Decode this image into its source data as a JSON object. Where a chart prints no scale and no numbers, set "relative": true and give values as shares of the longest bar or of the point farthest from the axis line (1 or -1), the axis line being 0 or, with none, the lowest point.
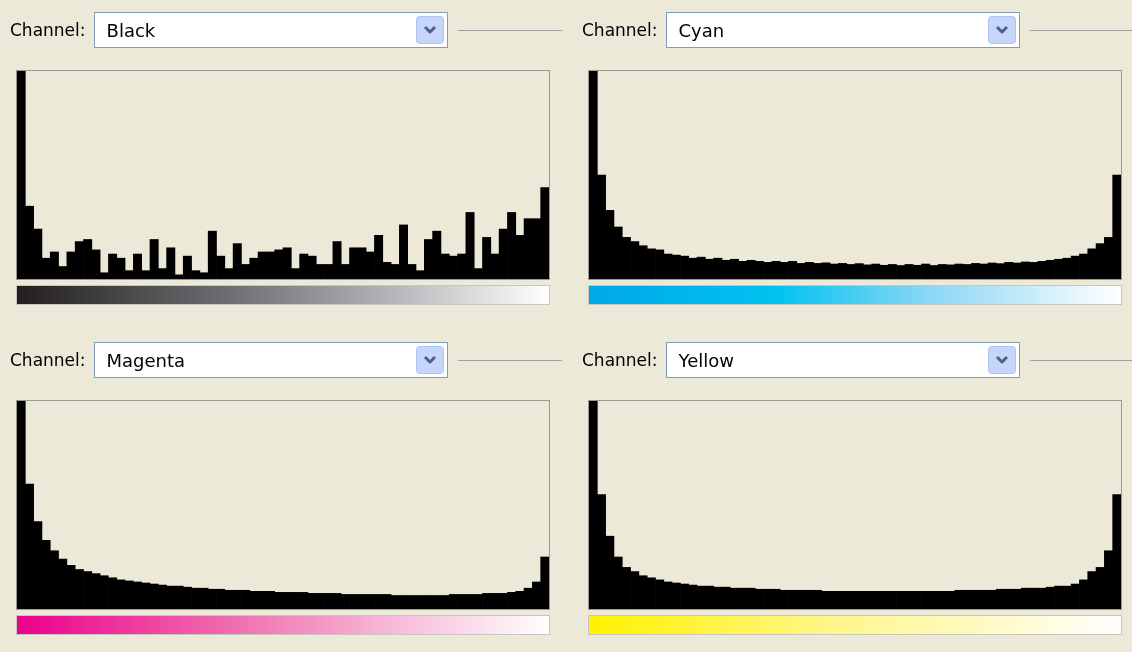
{
  "chart_data": [
    {
      "type": "bar",
      "title": "Channel:",
      "subtitle": "Black",
      "relative": true,
      "color": "#000000",
      "categories": [
        null,
        null,
        null,
        null,
        null,
        null,
        null,
        null,
        null,
        null,
        null,
        null,
        null,
        null,
        null,
        null,
        null,
        null,
        null,
        null,
        null,
        null,
        null,
        null,
        null,
        null,
        null,
        null,
        null,
        null,
        null,
        null,
        null,
        null,
        null,
        null,
        null,
        null,
        null,
        null,
        null,
        null,
        null,
        null,
        null,
        null,
        null,
        null,
        null,
        null,
        null,
        null,
        null,
        null,
        null,
        null,
        null,
        null,
        null,
        null,
        null,
        null,
        null,
        null
      ],
      "values": [
        1,
        0.35,
        0.24,
        0.1,
        0.13,
        0.06,
        0.13,
        0.18,
        0.19,
        0.14,
        0.03,
        0.12,
        0.1,
        0.04,
        0.12,
        0.04,
        0.19,
        0.05,
        0.15,
        0.02,
        0.11,
        0.04,
        0.03,
        0.23,
        0.11,
        0.05,
        0.17,
        0.07,
        0.1,
        0.13,
        0.13,
        0.14,
        0.15,
        0.05,
        0.12,
        0.11,
        0.07,
        0.07,
        0.18,
        0.07,
        0.15,
        0.15,
        0.13,
        0.21,
        0.08,
        0.07,
        0.26,
        0.07,
        0.04,
        0.19,
        0.23,
        0.12,
        0.11,
        0.12,
        0.32,
        0.05,
        0.2,
        0.12,
        0.24,
        0.32,
        0.21,
        0.29,
        0.29,
        0.44
      ]
    },
    {
      "type": "bar",
      "title": "Channel:",
      "subtitle": "Cyan",
      "relative": true,
      "color": "#000000",
      "categories": [
        null,
        null,
        null,
        null,
        null,
        null,
        null,
        null,
        null,
        null,
        null,
        null,
        null,
        null,
        null,
        null,
        null,
        null,
        null,
        null,
        null,
        null,
        null,
        null,
        null,
        null,
        null,
        null,
        null,
        null,
        null,
        null,
        null,
        null,
        null,
        null,
        null,
        null,
        null,
        null,
        null,
        null,
        null,
        null,
        null,
        null,
        null,
        null,
        null,
        null,
        null,
        null,
        null,
        null,
        null,
        null,
        null,
        null,
        null,
        null,
        null,
        null,
        null,
        null
      ],
      "values": [
        1,
        0.5,
        0.33,
        0.25,
        0.2,
        0.18,
        0.16,
        0.145,
        0.14,
        0.12,
        0.115,
        0.11,
        0.1,
        0.105,
        0.095,
        0.1,
        0.09,
        0.095,
        0.085,
        0.09,
        0.085,
        0.08,
        0.085,
        0.08,
        0.085,
        0.075,
        0.08,
        0.075,
        0.078,
        0.072,
        0.075,
        0.07,
        0.074,
        0.068,
        0.072,
        0.066,
        0.07,
        0.065,
        0.07,
        0.066,
        0.072,
        0.065,
        0.07,
        0.068,
        0.072,
        0.07,
        0.075,
        0.072,
        0.077,
        0.074,
        0.08,
        0.077,
        0.082,
        0.08,
        0.085,
        0.09,
        0.095,
        0.1,
        0.11,
        0.12,
        0.145,
        0.17,
        0.2,
        0.5
      ]
    },
    {
      "type": "bar",
      "title": "Channel:",
      "subtitle": "Magenta",
      "relative": true,
      "color": "#000000",
      "categories": [
        null,
        null,
        null,
        null,
        null,
        null,
        null,
        null,
        null,
        null,
        null,
        null,
        null,
        null,
        null,
        null,
        null,
        null,
        null,
        null,
        null,
        null,
        null,
        null,
        null,
        null,
        null,
        null,
        null,
        null,
        null,
        null,
        null,
        null,
        null,
        null,
        null,
        null,
        null,
        null,
        null,
        null,
        null,
        null,
        null,
        null,
        null,
        null,
        null,
        null,
        null,
        null,
        null,
        null,
        null,
        null,
        null,
        null,
        null,
        null,
        null,
        null,
        null,
        null
      ],
      "values": [
        1,
        0.6,
        0.42,
        0.33,
        0.28,
        0.24,
        0.21,
        0.19,
        0.18,
        0.17,
        0.16,
        0.15,
        0.14,
        0.135,
        0.13,
        0.125,
        0.12,
        0.115,
        0.11,
        0.11,
        0.105,
        0.1,
        0.1,
        0.095,
        0.095,
        0.09,
        0.09,
        0.09,
        0.085,
        0.085,
        0.085,
        0.08,
        0.08,
        0.08,
        0.08,
        0.075,
        0.075,
        0.075,
        0.075,
        0.07,
        0.07,
        0.07,
        0.07,
        0.07,
        0.07,
        0.065,
        0.065,
        0.065,
        0.065,
        0.065,
        0.065,
        0.065,
        0.07,
        0.07,
        0.07,
        0.07,
        0.075,
        0.075,
        0.075,
        0.08,
        0.085,
        0.1,
        0.13,
        0.25
      ]
    },
    {
      "type": "bar",
      "title": "Channel:",
      "subtitle": "Yellow",
      "relative": true,
      "color": "#000000",
      "categories": [
        null,
        null,
        null,
        null,
        null,
        null,
        null,
        null,
        null,
        null,
        null,
        null,
        null,
        null,
        null,
        null,
        null,
        null,
        null,
        null,
        null,
        null,
        null,
        null,
        null,
        null,
        null,
        null,
        null,
        null,
        null,
        null,
        null,
        null,
        null,
        null,
        null,
        null,
        null,
        null,
        null,
        null,
        null,
        null,
        null,
        null,
        null,
        null,
        null,
        null,
        null,
        null,
        null,
        null,
        null,
        null,
        null,
        null,
        null,
        null,
        null,
        null,
        null,
        null
      ],
      "values": [
        1,
        0.55,
        0.35,
        0.25,
        0.2,
        0.18,
        0.16,
        0.15,
        0.14,
        0.13,
        0.125,
        0.12,
        0.115,
        0.11,
        0.11,
        0.105,
        0.105,
        0.1,
        0.1,
        0.1,
        0.095,
        0.095,
        0.095,
        0.09,
        0.09,
        0.09,
        0.09,
        0.09,
        0.085,
        0.085,
        0.085,
        0.085,
        0.085,
        0.085,
        0.085,
        0.085,
        0.085,
        0.085,
        0.085,
        0.085,
        0.085,
        0.085,
        0.085,
        0.085,
        0.09,
        0.09,
        0.09,
        0.09,
        0.09,
        0.095,
        0.095,
        0.095,
        0.1,
        0.1,
        0.1,
        0.105,
        0.11,
        0.11,
        0.12,
        0.14,
        0.18,
        0.2,
        0.28,
        0.55
      ]
    }
  ]
}
